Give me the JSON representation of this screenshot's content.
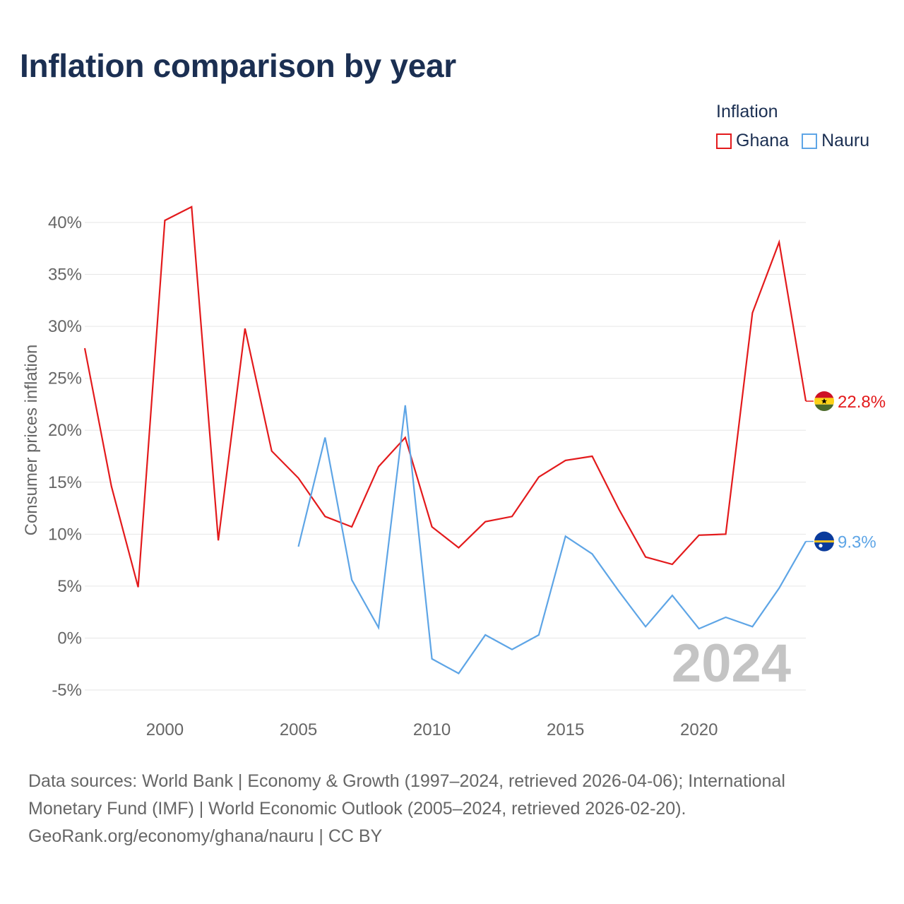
{
  "title": "Inflation comparison by year",
  "legend": {
    "title": "Inflation",
    "items": [
      {
        "label": "Ghana",
        "color": "#e31a1c"
      },
      {
        "label": "Nauru",
        "color": "#5ea5e6"
      }
    ]
  },
  "year_watermark": "2024",
  "end_labels": {
    "ghana": "22.8%",
    "nauru": "9.3%"
  },
  "source": {
    "line1": "Data sources: World Bank | Economy & Growth (1997–2024, retrieved 2026-04-06); International",
    "line2": "Monetary Fund (IMF) | World Economic Outlook (2005–2024, retrieved 2026-02-20).",
    "line3": "GeoRank.org/economy/ghana/nauru | CC BY"
  },
  "chart_data": {
    "type": "line",
    "title": "Inflation comparison by year",
    "xlabel": "",
    "ylabel": "Consumer prices inflation",
    "xlim": [
      1997,
      2024
    ],
    "ylim": [
      -5,
      40
    ],
    "x_ticks": [
      2000,
      2005,
      2010,
      2015,
      2020
    ],
    "x_tick_labels": [
      "2000",
      "2005",
      "2010",
      "2015",
      "2020"
    ],
    "y_ticks": [
      -5,
      0,
      5,
      10,
      15,
      20,
      25,
      30,
      35,
      40
    ],
    "y_tick_labels": [
      "-5%",
      "0%",
      "5%",
      "10%",
      "15%",
      "20%",
      "25%",
      "30%",
      "35%",
      "40%"
    ],
    "grid": true,
    "legend_position": "top-right",
    "series": [
      {
        "name": "Ghana",
        "color": "#e31a1c",
        "x": [
          1997,
          1998,
          1999,
          2000,
          2001,
          2002,
          2003,
          2004,
          2005,
          2006,
          2007,
          2008,
          2009,
          2010,
          2011,
          2012,
          2013,
          2014,
          2015,
          2016,
          2017,
          2018,
          2019,
          2020,
          2021,
          2022,
          2023,
          2024
        ],
        "values": [
          27.9,
          14.6,
          4.9,
          40.2,
          41.5,
          9.4,
          29.8,
          18.0,
          15.4,
          11.7,
          10.7,
          16.5,
          19.3,
          10.7,
          8.7,
          11.2,
          11.7,
          15.5,
          17.1,
          17.5,
          12.4,
          7.8,
          7.1,
          9.9,
          10.0,
          31.3,
          38.1,
          22.8
        ]
      },
      {
        "name": "Nauru",
        "color": "#5ea5e6",
        "x": [
          2005,
          2006,
          2007,
          2008,
          2009,
          2010,
          2011,
          2012,
          2013,
          2014,
          2015,
          2016,
          2017,
          2018,
          2019,
          2020,
          2021,
          2022,
          2023,
          2024
        ],
        "values": [
          8.8,
          19.3,
          5.6,
          1.0,
          22.4,
          -2.0,
          -3.4,
          0.3,
          -1.1,
          0.3,
          9.8,
          8.1,
          4.5,
          1.1,
          4.1,
          0.9,
          2.0,
          1.1,
          4.8,
          9.3
        ]
      }
    ]
  }
}
